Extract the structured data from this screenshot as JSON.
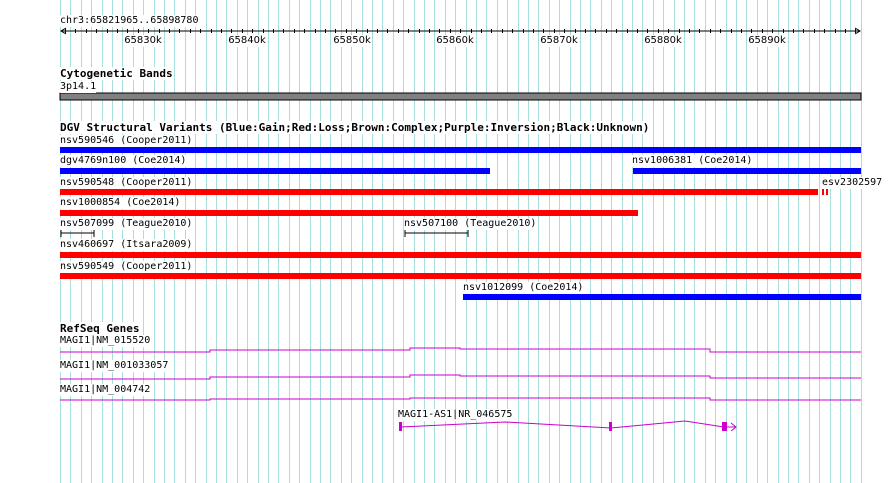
{
  "colors": {
    "grid": "#a9dede",
    "blue": "#0000ff",
    "red": "#ff0000",
    "band": "#808080",
    "gene": "#cc00cc"
  },
  "ruler": {
    "position": "chr3:65821965..65898780",
    "ticks": [
      "65830k",
      "65840k",
      "65850k",
      "65860k",
      "65870k",
      "65880k",
      "65890k"
    ]
  },
  "cytoband": {
    "title": "Cytogenetic Bands",
    "band": "3p14.1"
  },
  "dgv": {
    "title": "DGV Structural Variants (Blue:Gain;Red:Loss;Brown:Complex;Purple:Inversion;Black:Unknown)",
    "features": [
      {
        "label": "nsv590546 (Cooper2011)",
        "type": "gain"
      },
      {
        "label": "dgv4769n100 (Coe2014)",
        "type": "gain"
      },
      {
        "label": "nsv1006381 (Coe2014)",
        "type": "gain"
      },
      {
        "label": "nsv590548 (Cooper2011)",
        "type": "loss"
      },
      {
        "label": "esv2302597",
        "type": "loss"
      },
      {
        "label": "nsv1000854 (Coe2014)",
        "type": "loss"
      },
      {
        "label": "nsv507099 (Teague2010)",
        "type": "unknown"
      },
      {
        "label": "nsv507100 (Teague2010)",
        "type": "unknown"
      },
      {
        "label": "nsv460697 (Itsara2009)",
        "type": "loss"
      },
      {
        "label": "nsv590549 (Cooper2011)",
        "type": "loss"
      },
      {
        "label": "nsv1012099 (Coe2014)",
        "type": "gain"
      }
    ]
  },
  "refseq": {
    "title": "RefSeq Genes",
    "genes": [
      {
        "label": "MAGI1|NM_015520"
      },
      {
        "label": "MAGI1|NM_001033057"
      },
      {
        "label": "MAGI1|NM_004742"
      },
      {
        "label": "MAGI1-AS1|NR_046575"
      }
    ]
  }
}
